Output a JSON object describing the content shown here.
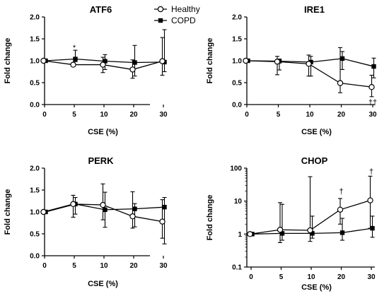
{
  "legend": {
    "entries": [
      {
        "name": "Healthy",
        "marker": "open-circle"
      },
      {
        "name": "COPD",
        "marker": "filled-square"
      }
    ]
  },
  "chart_data": [
    {
      "type": "line",
      "title": "ATF6",
      "xlabel": "CSE  (%)",
      "ylabel": "Fold change",
      "x_categories": [
        "0",
        "5",
        "10",
        "20",
        "30"
      ],
      "y_scale": "linear",
      "ylim": [
        0,
        2.0
      ],
      "y_ticks": [
        "0.0",
        "0.5",
        "1.0",
        "1.5",
        "2.0"
      ],
      "series": [
        {
          "name": "Healthy",
          "values": [
            1.0,
            0.91,
            0.91,
            0.8,
            0.99
          ],
          "err_low": [
            1.0,
            0.87,
            0.73,
            0.6,
            0.67
          ],
          "err_high": [
            1.0,
            0.95,
            1.08,
            1.02,
            1.53
          ]
        },
        {
          "name": "COPD",
          "values": [
            1.0,
            1.04,
            0.99,
            0.96,
            0.97
          ],
          "err_low": [
            1.0,
            0.98,
            0.8,
            0.65,
            0.75
          ],
          "err_high": [
            1.0,
            1.24,
            1.14,
            1.35,
            1.71
          ]
        }
      ],
      "annotations": [
        {
          "text": "*",
          "x": "5",
          "y": 1.31
        }
      ]
    },
    {
      "type": "line",
      "title": "IRE1",
      "xlabel": "CSE  (%)",
      "ylabel": "Fold change",
      "x_categories": [
        "0",
        "5",
        "10",
        "20",
        "30"
      ],
      "y_scale": "linear",
      "ylim": [
        0,
        2.0
      ],
      "y_ticks": [
        "0.0",
        "0.5",
        "1.0",
        "1.5",
        "2.0"
      ],
      "series": [
        {
          "name": "Healthy",
          "values": [
            1.0,
            0.98,
            0.93,
            0.49,
            0.4
          ],
          "err_low": [
            1.0,
            0.68,
            0.65,
            0.27,
            0.18
          ],
          "err_high": [
            1.0,
            1.1,
            1.13,
            1.3,
            0.67
          ]
        },
        {
          "name": "COPD",
          "values": [
            1.0,
            0.99,
            0.97,
            1.05,
            0.87
          ],
          "err_low": [
            1.0,
            0.79,
            0.65,
            0.8,
            0.61
          ],
          "err_high": [
            1.0,
            1.04,
            1.1,
            1.21,
            1.06
          ]
        }
      ],
      "annotations": [
        {
          "text": "††",
          "x": "30",
          "y": 0.06
        }
      ]
    },
    {
      "type": "line",
      "title": "PERK",
      "xlabel": "CSE  (%)",
      "ylabel": "Fold change",
      "x_categories": [
        "0",
        "5",
        "10",
        "20",
        "30"
      ],
      "y_scale": "linear",
      "ylim": [
        0,
        2.0
      ],
      "y_ticks": [
        "0.0",
        "0.5",
        "1.0",
        "1.5",
        "2.0"
      ],
      "series": [
        {
          "name": "Healthy",
          "values": [
            1.0,
            1.18,
            1.16,
            0.9,
            0.78
          ],
          "err_low": [
            1.0,
            0.88,
            0.82,
            0.63,
            0.4
          ],
          "err_high": [
            1.0,
            1.38,
            1.64,
            1.46,
            1.28
          ]
        },
        {
          "name": "COPD",
          "values": [
            1.0,
            1.18,
            1.05,
            1.07,
            1.11
          ],
          "err_low": [
            1.0,
            0.95,
            0.65,
            0.66,
            0.27
          ],
          "err_high": [
            1.0,
            1.33,
            1.45,
            1.19,
            1.33
          ]
        }
      ],
      "annotations": []
    },
    {
      "type": "line",
      "title": "CHOP",
      "xlabel": "CSE  (%)",
      "ylabel": "Fold change",
      "x_categories": [
        "0",
        "5",
        "10",
        "20",
        "30"
      ],
      "y_scale": "log",
      "ylim": [
        0.1,
        100
      ],
      "y_ticks": [
        "0.1",
        "1",
        "10",
        "100"
      ],
      "series": [
        {
          "name": "Healthy",
          "values": [
            1.0,
            1.35,
            1.3,
            5.5,
            10.5
          ],
          "err_low": [
            1.0,
            0.55,
            0.6,
            2.0,
            1.5
          ],
          "err_high": [
            1.0,
            9.0,
            55.0,
            12.0,
            57.0
          ]
        },
        {
          "name": "COPD",
          "values": [
            1.0,
            1.05,
            1.05,
            1.1,
            1.5
          ],
          "err_low": [
            1.0,
            0.65,
            0.75,
            0.65,
            0.8
          ],
          "err_high": [
            1.0,
            8.0,
            3.5,
            3.0,
            3.5
          ]
        }
      ],
      "annotations": [
        {
          "text": "†",
          "x": "20",
          "y": 20
        },
        {
          "text": "†",
          "x": "30",
          "y": 80
        }
      ]
    }
  ]
}
